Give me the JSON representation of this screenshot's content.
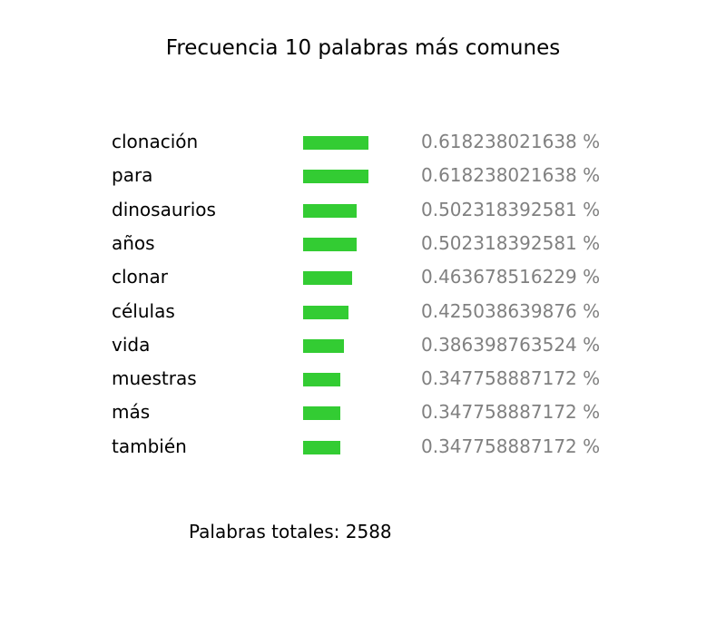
{
  "chart_data": {
    "type": "bar",
    "orientation": "horizontal",
    "title": "Frecuencia 10 palabras más comunes",
    "categories": [
      "clonación",
      "para",
      "dinosaurios",
      "años",
      "clonar",
      "células",
      "vida",
      "muestras",
      "más",
      "también"
    ],
    "values": [
      0.618238021638,
      0.618238021638,
      0.502318392581,
      0.502318392581,
      0.463678516229,
      0.425038639876,
      0.386398763524,
      0.347758887172,
      0.347758887172,
      0.347758887172
    ],
    "value_labels": [
      "0.618238021638 %",
      "0.618238021638 %",
      "0.502318392581 %",
      "0.502318392581 %",
      "0.463678516229 %",
      "0.425038639876 %",
      "0.386398763524 %",
      "0.347758887172 %",
      "0.347758887172 %",
      "0.347758887172 %"
    ],
    "bar_color": "#33cc33",
    "label_color": "#808080",
    "grid": false,
    "legend": "none"
  },
  "footer": {
    "total_label": "Palabras totales:",
    "total_value": "2588"
  }
}
